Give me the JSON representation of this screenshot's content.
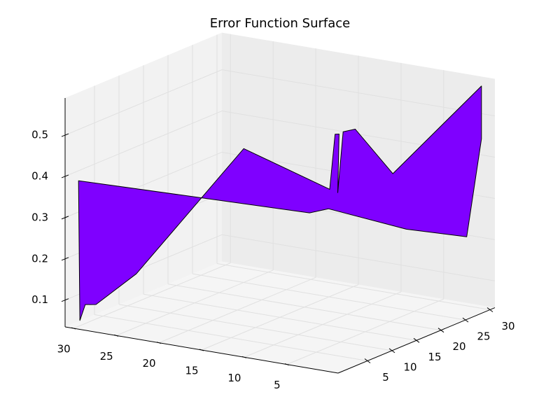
{
  "chart_data": {
    "type": "surface3d",
    "title": "Error Function Surface",
    "surface": {
      "x": [
        30,
        29.9,
        29.5,
        28.7,
        25.7,
        17.7,
        11.3,
        10.9,
        10.6,
        10.7,
        10.3,
        9.4,
        6.6,
        0,
        0,
        1.1,
        5.6,
        11.4,
        12.8
      ],
      "y": [
        0,
        0.1,
        0.5,
        1.3,
        4.3,
        12.3,
        18.7,
        19.1,
        19.4,
        19.3,
        19.7,
        20.6,
        23.4,
        30,
        30,
        28.9,
        24.4,
        18.6,
        17.2
      ],
      "z": [
        0.388,
        0.049,
        0.087,
        0.086,
        0.156,
        0.448,
        0.34,
        0.473,
        0.473,
        0.331,
        0.478,
        0.483,
        0.371,
        0.574,
        0.446,
        0.21,
        0.235,
        0.293,
        0.285
      ]
    },
    "color": "#7f00ff",
    "xlim": [
      -1,
      31
    ],
    "xticks": [
      5,
      10,
      15,
      20,
      25,
      30
    ],
    "ylim": [
      -1,
      31
    ],
    "yticks": [
      5,
      10,
      15,
      20,
      25,
      30
    ],
    "zlim": [
      0.035,
      0.59
    ],
    "zticks": [
      0.1,
      0.2,
      0.3,
      0.4,
      0.5
    ],
    "grid": true
  }
}
